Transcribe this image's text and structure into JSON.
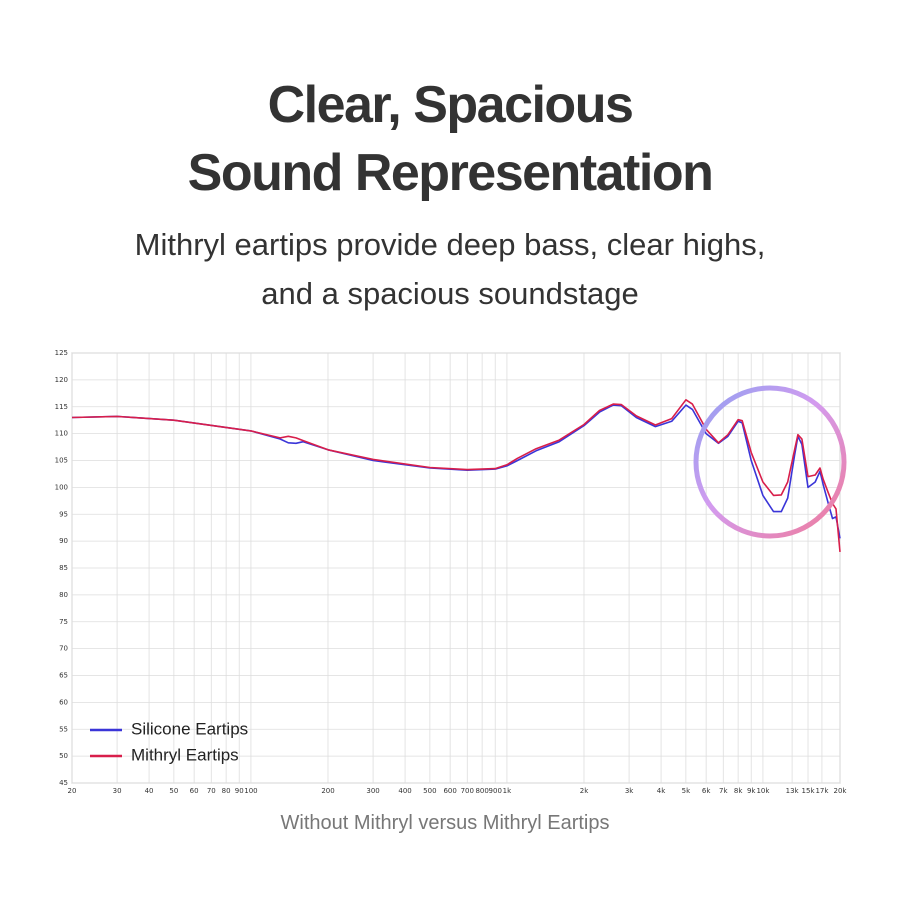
{
  "chart_data": {
    "type": "line",
    "title": [
      "Clear, Spacious",
      "Sound Representation"
    ],
    "subtitle": [
      "Mithryl eartips provide deep bass, clear highs,",
      "and a spacious soundstage"
    ],
    "caption": "Without Mithryl versus Mithryl Eartips",
    "log_x": true,
    "grid": true,
    "legend": "lower-left",
    "x": [
      20,
      30,
      50,
      100,
      130,
      140,
      150,
      160,
      200,
      300,
      500,
      700,
      900,
      1000,
      1100,
      1300,
      1600,
      2000,
      2300,
      2600,
      2800,
      3200,
      3800,
      4400,
      5000,
      5300,
      6000,
      6700,
      7300,
      8000,
      8300,
      9000,
      10000,
      11000,
      11800,
      12500,
      13300,
      13700,
      14200,
      15000,
      16000,
      16700,
      17200,
      18000,
      18700,
      19300,
      20000
    ],
    "series": [
      {
        "name": "Silicone Eartips",
        "color": "#3a35d8",
        "values": [
          113,
          113.2,
          112.5,
          110.5,
          109,
          108.3,
          108.2,
          108.5,
          107,
          105,
          103.6,
          103.2,
          103.4,
          104,
          105,
          106.8,
          108.5,
          111.5,
          114,
          115.3,
          115.2,
          113,
          111.3,
          112.3,
          115.3,
          114.5,
          110,
          108.2,
          109.5,
          112.3,
          112,
          105,
          98.5,
          95.5,
          95.5,
          98,
          106,
          109.5,
          108,
          100,
          101,
          103,
          100.5,
          97,
          94.2,
          94.5,
          90.5
        ]
      },
      {
        "name": "Mithryl Eartips",
        "color": "#d81e4a",
        "values": [
          113,
          113.2,
          112.5,
          110.5,
          109.2,
          109.5,
          109.2,
          108.7,
          107,
          105.2,
          103.7,
          103.3,
          103.5,
          104.2,
          105.4,
          107.2,
          108.8,
          111.7,
          114.3,
          115.5,
          115.4,
          113.3,
          111.6,
          112.8,
          116.3,
          115.5,
          110.8,
          108.3,
          109.8,
          112.6,
          112.4,
          106.5,
          101,
          98.5,
          98.6,
          101,
          107,
          109.8,
          109,
          102,
          102.3,
          103.6,
          101.5,
          99,
          97,
          96,
          88
        ]
      }
    ],
    "xlim": [
      20,
      20000
    ],
    "ylim": [
      45,
      125
    ],
    "xticks": [
      20,
      30,
      40,
      50,
      60,
      70,
      80,
      90,
      100,
      200,
      300,
      400,
      500,
      600,
      700,
      800,
      900,
      {
        "value": 1000,
        "label": "1k"
      },
      {
        "value": 2000,
        "label": "2k"
      },
      {
        "value": 3000,
        "label": "3k"
      },
      {
        "value": 4000,
        "label": "4k"
      },
      {
        "value": 5000,
        "label": "5k"
      },
      {
        "value": 6000,
        "label": "6k"
      },
      {
        "value": 7000,
        "label": "7k"
      },
      {
        "value": 8000,
        "label": "8k"
      },
      {
        "value": 9000,
        "label": "9k"
      },
      {
        "value": 10000,
        "label": "10k"
      },
      {
        "value": 13000,
        "label": "13k"
      },
      {
        "value": 15000,
        "label": "15k"
      },
      {
        "value": 17000,
        "label": "17k"
      },
      {
        "value": 20000,
        "label": "20k"
      }
    ],
    "yticks": [
      45,
      50,
      55,
      60,
      65,
      70,
      75,
      80,
      85,
      90,
      95,
      100,
      105,
      110,
      115,
      120,
      125
    ]
  }
}
